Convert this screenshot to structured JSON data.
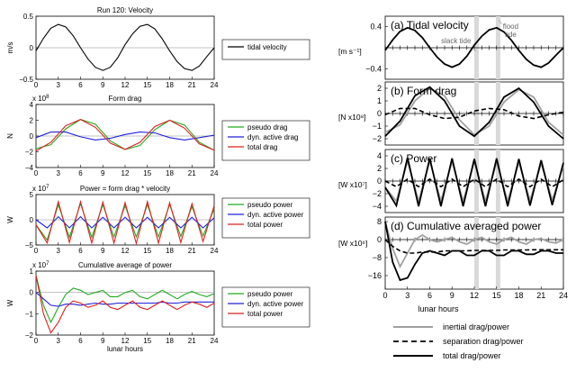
{
  "left_titles": [
    "Run 120: Velocity",
    "Form drag",
    "Power = form drag * velocity",
    "Cumulative average of power"
  ],
  "left_ylabels": [
    "m/s",
    "N",
    "W",
    "W"
  ],
  "left_xlabel": "lunar hours",
  "left_exponents": [
    "x 10",
    "x 10",
    "x 10"
  ],
  "left_exponent_powers": [
    "8",
    "7",
    "7"
  ],
  "right_xlabel": "lunar hours",
  "annotations": {
    "slack": "slack tide",
    "flood": "flood\ntide"
  },
  "colors": {
    "green": "#22aa22",
    "blue": "#2222dd",
    "red": "#dd2222",
    "gray": "#a0a0a0",
    "black": "#000000",
    "band": "#d9d9d9"
  },
  "right_legend": [
    {
      "label": "inertial drag/power",
      "style": "gray"
    },
    {
      "label": "separation drag/power",
      "style": "dashed"
    },
    {
      "label": "total drag/power",
      "style": "black"
    }
  ],
  "chart_data": [
    {
      "type": "line",
      "title": "Run 120: Velocity",
      "ylabel": "m/s",
      "xlabel": "",
      "xlim": [
        0,
        24
      ],
      "ylim": [
        -0.5,
        0.5
      ],
      "xticks": [
        0,
        3,
        6,
        9,
        12,
        15,
        18,
        21,
        24
      ],
      "yticks": [
        -0.5,
        0,
        0.5
      ],
      "series": [
        {
          "name": "tidal velocity",
          "x": [
            0,
            1,
            2,
            3,
            4,
            5,
            6,
            7,
            8,
            9,
            10,
            11,
            12,
            13,
            14,
            15,
            16,
            17,
            18,
            19,
            20,
            21,
            22,
            23,
            24
          ],
          "y": [
            -0.05,
            0.15,
            0.31,
            0.37,
            0.33,
            0.19,
            0.0,
            -0.18,
            -0.31,
            -0.36,
            -0.31,
            -0.16,
            0.05,
            0.22,
            0.34,
            0.37,
            0.3,
            0.14,
            -0.05,
            -0.22,
            -0.33,
            -0.36,
            -0.29,
            -0.14,
            0.0
          ]
        }
      ]
    },
    {
      "type": "line",
      "title": "Form drag",
      "ylabel": "N",
      "exponent": "x 10^8",
      "xlim": [
        0,
        24
      ],
      "ylim": [
        -4,
        4
      ],
      "xticks": [
        0,
        3,
        6,
        9,
        12,
        15,
        18,
        21,
        24
      ],
      "yticks": [
        -4,
        -2,
        0,
        2,
        4
      ],
      "series": [
        {
          "name": "pseudo drag",
          "x": [
            0,
            2,
            4,
            6,
            8,
            10,
            12,
            14,
            16,
            18,
            20,
            22,
            24
          ],
          "y": [
            -1.6,
            -1.1,
            0.9,
            2.1,
            1.5,
            -0.6,
            -1.7,
            -1.2,
            0.8,
            2.0,
            1.4,
            -0.8,
            -1.8
          ]
        },
        {
          "name": "dyn. active drag",
          "x": [
            0,
            2,
            4,
            6,
            8,
            10,
            12,
            14,
            16,
            18,
            20,
            22,
            24
          ],
          "y": [
            -0.2,
            0.5,
            0.5,
            -0.1,
            -0.5,
            -0.3,
            0.2,
            0.5,
            0.4,
            -0.2,
            -0.5,
            -0.2,
            0.1
          ]
        },
        {
          "name": "total drag",
          "x": [
            0,
            2,
            4,
            6,
            8,
            10,
            12,
            14,
            16,
            18,
            20,
            22,
            24
          ],
          "y": [
            -1.9,
            -0.8,
            1.3,
            2.1,
            1.1,
            -0.9,
            -1.7,
            -0.8,
            1.2,
            2.0,
            1.0,
            -1.0,
            -1.8
          ]
        }
      ]
    },
    {
      "type": "line",
      "title": "Power = form drag * velocity",
      "ylabel": "W",
      "exponent": "x 10^7",
      "xlim": [
        0,
        24
      ],
      "ylim": [
        -5,
        5
      ],
      "xticks": [
        0,
        3,
        6,
        9,
        12,
        15,
        18,
        21,
        24
      ],
      "yticks": [
        -5,
        0,
        5
      ],
      "series": [
        {
          "name": "pseudo power",
          "x": [
            0,
            1.5,
            3,
            4.5,
            6,
            7.5,
            9,
            10.5,
            12,
            13.5,
            15,
            16.5,
            18,
            19.5,
            21,
            22.5,
            24
          ],
          "y": [
            -1,
            -4,
            3,
            -3.5,
            3.2,
            -3.5,
            3,
            -3.4,
            2.8,
            -3.4,
            3,
            -3.4,
            3,
            -3.3,
            2.6,
            -3.2,
            2.2
          ]
        },
        {
          "name": "dyn. active power",
          "x": [
            0,
            1.5,
            3,
            4.5,
            6,
            7.5,
            9,
            10.5,
            12,
            13.5,
            15,
            16.5,
            18,
            19.5,
            21,
            22.5,
            24
          ],
          "y": [
            0,
            -1.6,
            0.6,
            -1.6,
            0.6,
            -1.6,
            0.5,
            -1.6,
            0.5,
            -1.6,
            0.5,
            -1.6,
            0.5,
            -1.6,
            0.5,
            -1.6,
            0.4
          ]
        },
        {
          "name": "total power",
          "x": [
            0,
            1.5,
            3,
            4.5,
            6,
            7.5,
            9,
            10.5,
            12,
            13.5,
            15,
            16.5,
            18,
            19.5,
            21,
            22.5,
            24
          ],
          "y": [
            -1,
            -4.6,
            3.6,
            -4.5,
            3.6,
            -4.6,
            3.5,
            -4.6,
            3.4,
            -4.7,
            3.6,
            -4.6,
            3.4,
            -4.5,
            3.2,
            -4.3,
            2.8
          ]
        }
      ]
    },
    {
      "type": "line",
      "title": "Cumulative average of power",
      "ylabel": "W",
      "xlabel": "lunar hours",
      "exponent": "x 10^7",
      "xlim": [
        0,
        24
      ],
      "ylim": [
        -2,
        1
      ],
      "xticks": [
        0,
        3,
        6,
        9,
        12,
        15,
        18,
        21,
        24
      ],
      "yticks": [
        -2,
        -1,
        0,
        1
      ],
      "series": [
        {
          "name": "pseudo power",
          "x": [
            0,
            1,
            2,
            3,
            4,
            5,
            6,
            7,
            8,
            9,
            10,
            11,
            12,
            13,
            14,
            15,
            16,
            17,
            18,
            19,
            20,
            21,
            22,
            23,
            24
          ],
          "y": [
            0.8,
            -0.6,
            -1.4,
            -0.7,
            -0.1,
            0.2,
            0.1,
            -0.1,
            0.0,
            0.1,
            -0.2,
            -0.2,
            0.0,
            0.1,
            -0.2,
            -0.3,
            -0.1,
            0.1,
            -0.1,
            -0.3,
            -0.1,
            0.05,
            -0.1,
            -0.2,
            -0.05
          ]
        },
        {
          "name": "dyn. active power",
          "x": [
            0,
            1,
            2,
            3,
            4,
            5,
            6,
            7,
            8,
            9,
            10,
            11,
            12,
            13,
            14,
            15,
            16,
            17,
            18,
            19,
            20,
            21,
            22,
            23,
            24
          ],
          "y": [
            0,
            -0.3,
            -0.6,
            -0.65,
            -0.55,
            -0.55,
            -0.6,
            -0.55,
            -0.5,
            -0.55,
            -0.55,
            -0.5,
            -0.5,
            -0.5,
            -0.5,
            -0.5,
            -0.5,
            -0.45,
            -0.5,
            -0.5,
            -0.45,
            -0.45,
            -0.45,
            -0.45,
            -0.45
          ]
        },
        {
          "name": "total power",
          "x": [
            0,
            1,
            2,
            3,
            4,
            5,
            6,
            7,
            8,
            9,
            10,
            11,
            12,
            13,
            14,
            15,
            16,
            17,
            18,
            19,
            20,
            21,
            22,
            23,
            24
          ],
          "y": [
            0.8,
            -1.0,
            -1.9,
            -1.4,
            -0.7,
            -0.4,
            -0.5,
            -0.7,
            -0.6,
            -0.4,
            -0.7,
            -0.8,
            -0.6,
            -0.4,
            -0.7,
            -0.8,
            -0.6,
            -0.4,
            -0.6,
            -0.8,
            -0.6,
            -0.45,
            -0.55,
            -0.7,
            -0.5
          ]
        }
      ]
    },
    {
      "type": "line",
      "title": "(a) Tidal velocity",
      "ylabel": "[m s⁻¹]",
      "xlim": [
        0,
        24
      ],
      "ylim": [
        -0.6,
        0.6
      ],
      "xticks": [
        0,
        3,
        6,
        9,
        12,
        15,
        18,
        21,
        24
      ],
      "yticks": [
        -0.4,
        0,
        0.4
      ],
      "highlight_x": [
        12.3,
        15.2
      ],
      "series": [
        {
          "name": "",
          "x": [
            0,
            1,
            2,
            3,
            4,
            5,
            6,
            7,
            8,
            9,
            10,
            11,
            12,
            13,
            14,
            15,
            16,
            17,
            18,
            19,
            20,
            21,
            22,
            23,
            24
          ],
          "y": [
            -0.05,
            0.15,
            0.31,
            0.38,
            0.33,
            0.19,
            0.0,
            -0.18,
            -0.31,
            -0.37,
            -0.31,
            -0.16,
            0.05,
            0.22,
            0.34,
            0.38,
            0.3,
            0.14,
            -0.05,
            -0.22,
            -0.33,
            -0.37,
            -0.29,
            -0.14,
            0.0
          ]
        }
      ]
    },
    {
      "type": "line",
      "title": "(b) Form drag",
      "ylabel": "[N x10⁸]",
      "xlim": [
        0,
        24
      ],
      "ylim": [
        -2.5,
        2.5
      ],
      "xticks": [
        0,
        3,
        6,
        9,
        12,
        15,
        18,
        21,
        24
      ],
      "yticks": [
        -2,
        -1,
        0,
        1,
        2
      ],
      "series": [
        {
          "name": "inertial drag/power",
          "x": [
            0,
            2,
            4,
            6,
            8,
            10,
            12,
            14,
            16,
            18,
            20,
            22,
            24
          ],
          "y": [
            -1.5,
            -0.9,
            1.0,
            2.0,
            1.4,
            -0.5,
            -1.7,
            -1.0,
            0.9,
            1.9,
            1.3,
            -0.7,
            -1.7
          ]
        },
        {
          "name": "separation drag/power",
          "x": [
            0,
            2,
            4,
            6,
            8,
            10,
            12,
            14,
            16,
            18,
            20,
            22,
            24
          ],
          "y": [
            -0.1,
            0.4,
            0.4,
            -0.1,
            -0.4,
            -0.3,
            0.2,
            0.4,
            0.3,
            -0.2,
            -0.4,
            -0.1,
            0.1
          ]
        },
        {
          "name": "total drag/power",
          "x": [
            0,
            2,
            4,
            6,
            8,
            10,
            12,
            14,
            16,
            18,
            20,
            22,
            24
          ],
          "y": [
            -1.8,
            -0.6,
            1.4,
            2.1,
            1.0,
            -1.0,
            -1.8,
            -0.7,
            1.3,
            2.0,
            0.9,
            -1.0,
            -2.0
          ]
        }
      ]
    },
    {
      "type": "line",
      "title": "(c) Power",
      "ylabel": "[W x10⁷]",
      "xlim": [
        0,
        24
      ],
      "ylim": [
        -5,
        5
      ],
      "xticks": [
        0,
        3,
        6,
        9,
        12,
        15,
        18,
        21,
        24
      ],
      "yticks": [
        -4,
        -2,
        0,
        2,
        4
      ],
      "series": [
        {
          "name": "inertial drag/power",
          "x": [
            0,
            1.5,
            3,
            4.5,
            6,
            7.5,
            9,
            10.5,
            12,
            13.5,
            15,
            16.5,
            18,
            19.5,
            21,
            22.5,
            24
          ],
          "y": [
            -1,
            -3.2,
            3.2,
            -3.2,
            3.2,
            -3.2,
            3.1,
            -3.2,
            3.1,
            -3.2,
            3.0,
            -3.2,
            3.0,
            -3.1,
            2.8,
            -3.0,
            2.4
          ]
        },
        {
          "name": "separation drag/power",
          "x": [
            0,
            1.5,
            3,
            4.5,
            6,
            7.5,
            9,
            10.5,
            12,
            13.5,
            15,
            16.5,
            18,
            19.5,
            21,
            22.5,
            24
          ],
          "y": [
            0,
            -0.9,
            0.3,
            -0.9,
            0.3,
            -0.9,
            0.3,
            -0.9,
            0.3,
            -0.9,
            0.3,
            -0.9,
            0.3,
            -0.9,
            0.3,
            -0.9,
            0.2
          ]
        },
        {
          "name": "total drag/power",
          "x": [
            0,
            1.5,
            3,
            4.5,
            6,
            7.5,
            9,
            10.5,
            12,
            13.5,
            15,
            16.5,
            18,
            19.5,
            21,
            22.5,
            24
          ],
          "y": [
            -1,
            -3.9,
            3.7,
            -4.0,
            3.6,
            -4.0,
            3.6,
            -4.0,
            3.5,
            -4.0,
            3.6,
            -4.0,
            3.5,
            -3.9,
            3.3,
            -3.8,
            2.9
          ]
        }
      ]
    },
    {
      "type": "line",
      "title": "(d) Cumulative averaged power",
      "ylabel": "[W x10⁶]",
      "xlim": [
        0,
        24
      ],
      "ylim": [
        -22,
        10
      ],
      "xticks": [
        0,
        3,
        6,
        9,
        12,
        15,
        18,
        21,
        24
      ],
      "yticks": [
        8,
        0,
        -8,
        -16
      ],
      "series": [
        {
          "name": "inertial drag/power",
          "x": [
            0,
            1,
            2,
            3,
            4,
            5,
            6,
            7,
            8,
            9,
            10,
            11,
            12,
            13,
            14,
            15,
            16,
            17,
            18,
            19,
            20,
            21,
            22,
            23,
            24
          ],
          "y": [
            8,
            -4,
            -12,
            -6,
            0,
            2,
            0,
            -1,
            0,
            1,
            -1,
            -2,
            0,
            1,
            -1,
            -2,
            0,
            1,
            -1,
            -2,
            0,
            0.5,
            -1,
            -1.5,
            0
          ]
        },
        {
          "name": "separation drag/power",
          "x": [
            0,
            1,
            2,
            3,
            4,
            5,
            6,
            7,
            8,
            9,
            10,
            11,
            12,
            13,
            14,
            15,
            16,
            17,
            18,
            19,
            20,
            21,
            22,
            23,
            24
          ],
          "y": [
            0,
            -3,
            -5,
            -6,
            -6,
            -5.5,
            -5.5,
            -5.5,
            -5,
            -5,
            -5,
            -5,
            -4.8,
            -4.8,
            -4.8,
            -4.8,
            -4.6,
            -4.6,
            -4.6,
            -4.6,
            -4.5,
            -4.5,
            -4.5,
            -4.5,
            -4.5
          ]
        },
        {
          "name": "total drag/power",
          "x": [
            0,
            1,
            2,
            3,
            4,
            5,
            6,
            7,
            8,
            9,
            10,
            11,
            12,
            13,
            14,
            15,
            16,
            17,
            18,
            19,
            20,
            21,
            22,
            23,
            24
          ],
          "y": [
            8,
            -10,
            -18,
            -17,
            -11,
            -6,
            -5,
            -6,
            -7,
            -5,
            -5,
            -7,
            -7,
            -5,
            -5,
            -7,
            -7,
            -5,
            -5,
            -6.5,
            -6.5,
            -5,
            -5,
            -6,
            -6
          ]
        }
      ]
    }
  ]
}
